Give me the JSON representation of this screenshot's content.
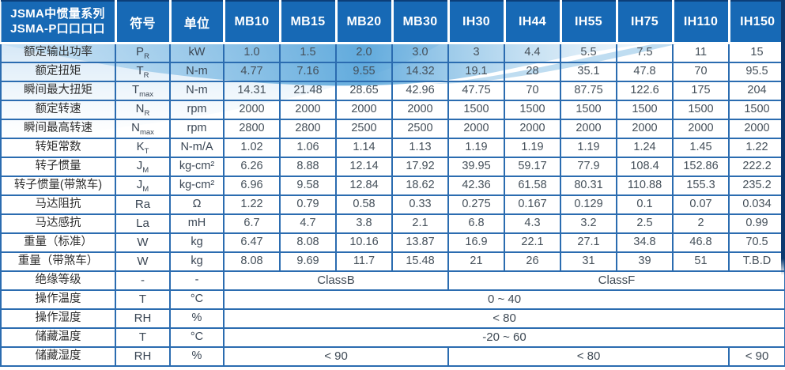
{
  "header": {
    "title_line1": "JSMA中惯量系列",
    "title_line2": "JSMA-P口口口口",
    "symbol_col": "符号",
    "unit_col": "单位",
    "models": [
      "MB10",
      "MB15",
      "MB20",
      "MB30",
      "IH30",
      "IH44",
      "IH55",
      "IH75",
      "IH110",
      "IH150"
    ]
  },
  "rows": [
    {
      "label": "额定输出功率",
      "sym": "P",
      "sub": "R",
      "unit": "kW",
      "values": [
        "1.0",
        "1.5",
        "2.0",
        "3.0",
        "3",
        "4.4",
        "5.5",
        "7.5",
        "11",
        "15"
      ]
    },
    {
      "label": "额定扭矩",
      "sym": "T",
      "sub": "R",
      "unit": "N-m",
      "values": [
        "4.77",
        "7.16",
        "9.55",
        "14.32",
        "19.1",
        "28",
        "35.1",
        "47.8",
        "70",
        "95.5"
      ]
    },
    {
      "label": "瞬间最大扭矩",
      "sym": "T",
      "sub": "max",
      "unit": "N-m",
      "values": [
        "14.31",
        "21.48",
        "28.65",
        "42.96",
        "47.75",
        "70",
        "87.75",
        "122.6",
        "175",
        "204"
      ]
    },
    {
      "label": "额定转速",
      "sym": "N",
      "sub": "R",
      "unit": "rpm",
      "values": [
        "2000",
        "2000",
        "2000",
        "2000",
        "1500",
        "1500",
        "1500",
        "1500",
        "1500",
        "1500"
      ]
    },
    {
      "label": "瞬间最高转速",
      "sym": "N",
      "sub": "max",
      "unit": "rpm",
      "values": [
        "2800",
        "2800",
        "2500",
        "2500",
        "2000",
        "2000",
        "2000",
        "2000",
        "2000",
        "2000"
      ]
    },
    {
      "label": "转矩常数",
      "sym": "K",
      "sub": "T",
      "unit": "N-m/A",
      "values": [
        "1.02",
        "1.06",
        "1.14",
        "1.13",
        "1.19",
        "1.19",
        "1.19",
        "1.24",
        "1.45",
        "1.22"
      ]
    },
    {
      "label": "转子惯量",
      "sym": "J",
      "sub": "M",
      "unit": "kg-cm²",
      "values": [
        "6.26",
        "8.88",
        "12.14",
        "17.92",
        "39.95",
        "59.17",
        "77.9",
        "108.4",
        "152.86",
        "222.2"
      ]
    },
    {
      "label": "转子惯量(带煞车)",
      "sym": "J",
      "sub": "M",
      "unit": "kg-cm²",
      "values": [
        "6.96",
        "9.58",
        "12.84",
        "18.62",
        "42.36",
        "61.58",
        "80.31",
        "110.88",
        "155.3",
        "235.2"
      ]
    },
    {
      "label": "马达阻抗",
      "sym": "Ra",
      "sub": "",
      "unit": "Ω",
      "values": [
        "1.22",
        "0.79",
        "0.58",
        "0.33",
        "0.275",
        "0.167",
        "0.129",
        "0.1",
        "0.07",
        "0.034"
      ]
    },
    {
      "label": "马达感抗",
      "sym": "La",
      "sub": "",
      "unit": "mH",
      "values": [
        "6.7",
        "4.7",
        "3.8",
        "2.1",
        "6.8",
        "4.3",
        "3.2",
        "2.5",
        "2",
        "0.99"
      ]
    },
    {
      "label": "重量（标准）",
      "sym": "W",
      "sub": "",
      "unit": "kg",
      "values": [
        "6.47",
        "8.08",
        "10.16",
        "13.87",
        "16.9",
        "22.1",
        "27.1",
        "34.8",
        "46.8",
        "70.5"
      ]
    },
    {
      "label": "重量（带煞车）",
      "sym": "W",
      "sub": "",
      "unit": "kg",
      "values": [
        "8.08",
        "9.69",
        "11.7",
        "15.48",
        "21",
        "26",
        "31",
        "39",
        "51",
        "T.B.D"
      ]
    },
    {
      "label": "绝缘等级",
      "sym": "-",
      "sub": "",
      "unit": "-",
      "spans": [
        {
          "text": "ClassB",
          "cols": 4
        },
        {
          "text": "ClassF",
          "cols": 6
        }
      ]
    },
    {
      "label": "操作温度",
      "sym": "T",
      "sub": "",
      "unit": "°C",
      "spans": [
        {
          "text": "0 ~ 40",
          "cols": 10
        }
      ]
    },
    {
      "label": "操作湿度",
      "sym": "RH",
      "sub": "",
      "unit": "%",
      "spans": [
        {
          "text": "< 80",
          "cols": 10
        }
      ]
    },
    {
      "label": "储藏温度",
      "sym": "T",
      "sub": "",
      "unit": "°C",
      "spans": [
        {
          "text": "-20 ~ 60",
          "cols": 10
        }
      ]
    },
    {
      "label": "储藏湿度",
      "sym": "RH",
      "sub": "",
      "unit": "%",
      "spans": [
        {
          "text": "< 90",
          "cols": 4
        },
        {
          "text": "< 80",
          "cols": 5
        },
        {
          "text": "< 90",
          "cols": 1
        }
      ]
    }
  ],
  "colors": {
    "header_bg": "#1769b5",
    "grid_line": "#2b6cb0",
    "header_text": "#ffffff",
    "edge_strip": "#0d3a70",
    "wave_strong": "#4b9fd8",
    "wave_light": "#d6eaf8",
    "value_text": "#45505a",
    "label_text": "#2e2e2e"
  }
}
